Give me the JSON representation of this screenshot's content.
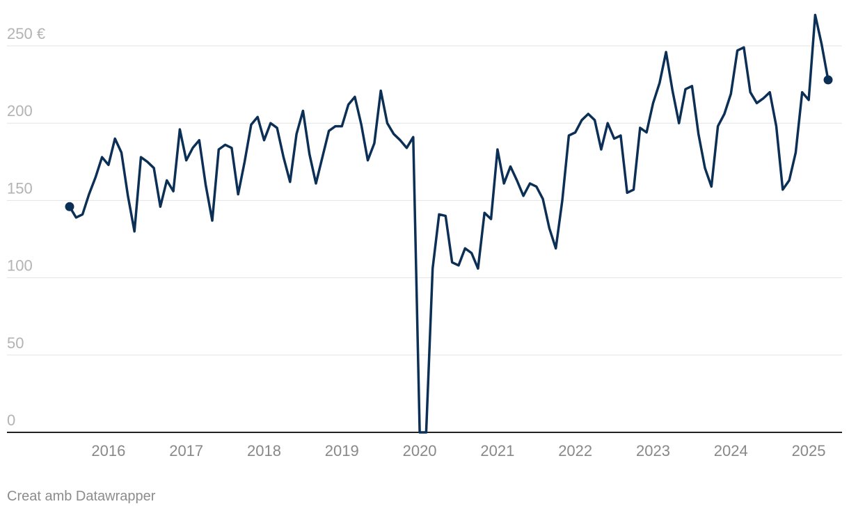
{
  "footer": {
    "credit": "Creat amb Datawrapper"
  },
  "colors": {
    "series": "#0b2f55",
    "grid": "#e3e3e3",
    "ytick": "#b3b3b3",
    "xtick": "#888888"
  },
  "chart_data": {
    "type": "line",
    "title": "",
    "xlabel": "",
    "ylabel": "",
    "ylim": [
      0,
      250
    ],
    "xlim": [
      2015.0,
      2025.85
    ],
    "grid": true,
    "legend": "none",
    "y_ticks": [
      {
        "value": 0,
        "label": "0"
      },
      {
        "value": 50,
        "label": "50"
      },
      {
        "value": 100,
        "label": "100"
      },
      {
        "value": 150,
        "label": "150"
      },
      {
        "value": 200,
        "label": "200"
      },
      {
        "value": 250,
        "label": "250 €"
      }
    ],
    "x_ticks": [
      {
        "value": 2016,
        "label": "2016"
      },
      {
        "value": 2017,
        "label": "2017"
      },
      {
        "value": 2018,
        "label": "2018"
      },
      {
        "value": 2019,
        "label": "2019"
      },
      {
        "value": 2020,
        "label": "2020"
      },
      {
        "value": 2021,
        "label": "2021"
      },
      {
        "value": 2022,
        "label": "2022"
      },
      {
        "value": 2023,
        "label": "2023"
      },
      {
        "value": 2024,
        "label": "2024"
      },
      {
        "value": 2025,
        "label": "2025"
      }
    ],
    "series": [
      {
        "x": [
          "2015-10",
          "2015-11",
          "2015-12",
          "2016-01",
          "2016-02",
          "2016-03",
          "2016-04",
          "2016-05",
          "2016-06",
          "2016-07",
          "2016-08",
          "2016-09",
          "2016-10",
          "2016-11",
          "2016-12",
          "2017-01",
          "2017-02",
          "2017-03",
          "2017-04",
          "2017-05",
          "2017-06",
          "2017-07",
          "2017-08",
          "2017-09",
          "2017-10",
          "2017-11",
          "2017-12",
          "2018-01",
          "2018-02",
          "2018-03",
          "2018-04",
          "2018-05",
          "2018-06",
          "2018-07",
          "2018-08",
          "2018-09",
          "2018-10",
          "2018-11",
          "2018-12",
          "2019-01",
          "2019-02",
          "2019-03",
          "2019-04",
          "2019-05",
          "2019-06",
          "2019-07",
          "2019-08",
          "2019-09",
          "2019-10",
          "2019-11",
          "2019-12",
          "2020-01",
          "2020-02",
          "2020-03",
          "2020-04",
          "2020-05",
          "2020-06",
          "2020-07",
          "2020-08",
          "2020-09",
          "2020-10",
          "2020-11",
          "2020-12",
          "2021-01",
          "2021-02",
          "2021-03",
          "2021-04",
          "2021-05",
          "2021-06",
          "2021-07",
          "2021-08",
          "2021-09",
          "2021-10",
          "2021-11",
          "2021-12",
          "2022-01",
          "2022-02",
          "2022-03",
          "2022-04",
          "2022-05",
          "2022-06",
          "2022-07",
          "2022-08",
          "2022-09",
          "2022-10",
          "2022-11",
          "2022-12",
          "2023-01",
          "2023-02",
          "2023-03",
          "2023-04",
          "2023-05",
          "2023-06",
          "2023-07",
          "2023-08",
          "2023-09",
          "2023-10",
          "2023-11",
          "2023-12",
          "2024-01",
          "2024-02",
          "2024-03",
          "2024-04",
          "2024-05",
          "2024-06",
          "2024-07",
          "2024-08",
          "2024-09",
          "2024-10",
          "2024-11",
          "2024-12",
          "2025-01",
          "2025-02",
          "2025-03",
          "2025-04",
          "2025-05",
          "2025-06",
          "2025-07"
        ],
        "values": [
          146,
          139,
          141,
          154,
          165,
          178,
          173,
          190,
          181,
          153,
          130,
          178,
          175,
          171,
          146,
          163,
          156,
          196,
          176,
          184,
          189,
          160,
          137,
          183,
          186,
          184,
          154,
          175,
          199,
          204,
          189,
          200,
          197,
          178,
          162,
          193,
          208,
          180,
          161,
          178,
          195,
          198,
          198,
          212,
          217,
          199,
          176,
          187,
          221,
          200,
          193,
          189,
          184,
          191,
          0,
          0,
          106,
          141,
          140,
          110,
          108,
          119,
          116,
          106,
          142,
          138,
          183,
          161,
          172,
          163,
          153,
          161,
          159,
          151,
          132,
          119,
          150,
          192,
          194,
          202,
          206,
          202,
          183,
          200,
          190,
          192,
          155,
          157,
          197,
          194,
          213,
          226,
          246,
          221,
          200,
          222,
          224,
          193,
          171,
          159,
          198,
          206,
          219,
          247,
          249,
          220,
          213,
          216,
          220,
          198,
          157,
          163,
          181,
          220,
          215,
          270,
          251,
          228
        ]
      }
    ],
    "endpoint_markers": [
      "first",
      "last"
    ]
  }
}
